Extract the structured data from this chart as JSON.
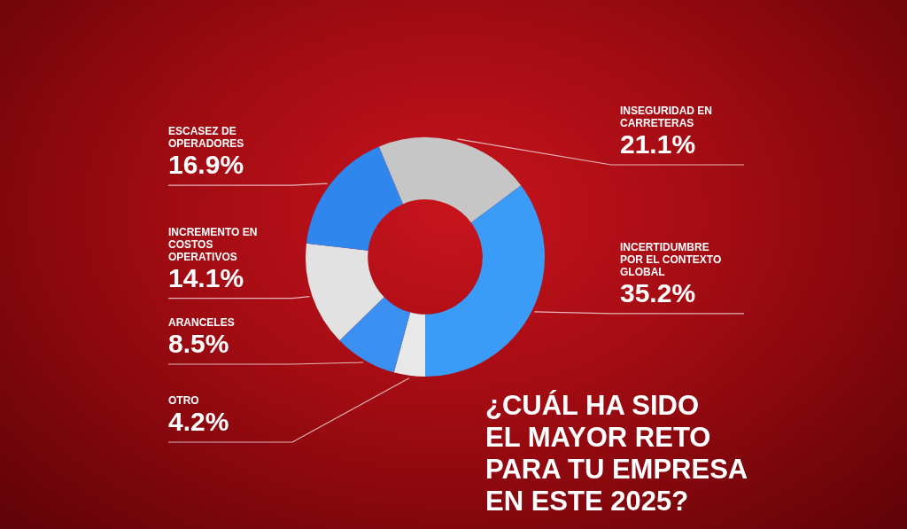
{
  "chart_data": {
    "type": "donut",
    "title": "¿CUÁL HA SIDO EL MAYOR RETO PARA TU EMPRESA EN ESTE 2025?",
    "categories": [
      "OTRO",
      "ARANCELES",
      "INCREMENTO EN COSTOS OPERATIVOS",
      "ESCASEZ DE OPERADORES",
      "INSEGURIDAD EN CARRETERAS",
      "INCERTIDUMBRE POR EL CONTEXTO GLOBAL"
    ],
    "values": [
      4.2,
      8.5,
      14.1,
      16.9,
      21.1,
      35.2
    ],
    "value_labels": [
      "4.2%",
      "8.5%",
      "14.1%",
      "16.9%",
      "21.1%",
      "35.2%"
    ],
    "colors": [
      "#e8e8e8",
      "#3b8ff0",
      "#e2e2e2",
      "#2f86ec",
      "#c6c6c6",
      "#3a9cf6"
    ]
  }
}
